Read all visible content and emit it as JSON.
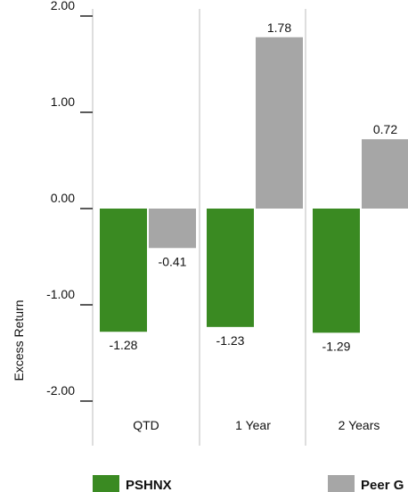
{
  "chart_data": {
    "type": "bar",
    "categories": [
      "QTD",
      "1 Year",
      "2 Years"
    ],
    "series": [
      {
        "name": "PSHNX",
        "color": "#3a8a22",
        "values": [
          -1.28,
          -1.23,
          -1.29
        ]
      },
      {
        "name": "Peer G",
        "color": "#a6a6a6",
        "values": [
          -0.41,
          1.78,
          0.72
        ]
      }
    ],
    "ylabel": "Excess Return",
    "xlabel": "",
    "ylim": [
      -2.0,
      2.0
    ],
    "yticks": [
      2.0,
      1.0,
      0.0,
      -1.0,
      -2.0
    ],
    "ytick_labels": [
      "2.00",
      "1.00",
      "0.00",
      "-1.00",
      "-2.00"
    ],
    "value_labels": [
      [
        "-1.28",
        "-1.23",
        "-1.29"
      ],
      [
        "-0.41",
        "1.78",
        "0.72"
      ]
    ],
    "grid": "vertical separators",
    "legend": "bottom"
  }
}
